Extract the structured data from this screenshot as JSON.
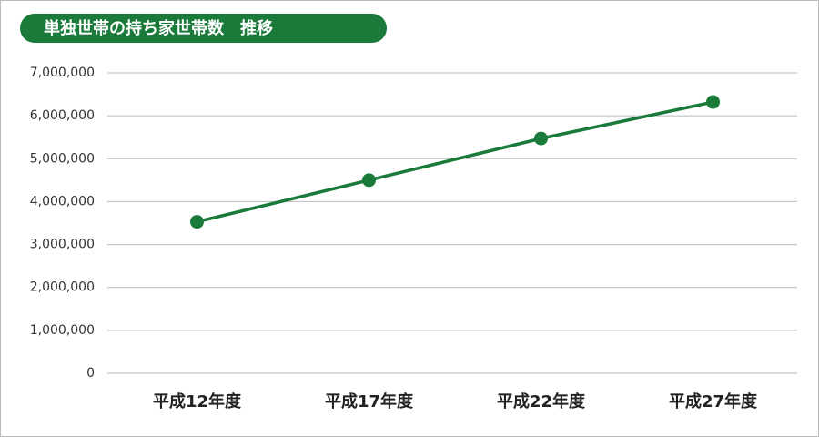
{
  "chart_data": {
    "type": "line",
    "title": "単独世帯の持ち家世帯数　推移",
    "categories": [
      "平成12年度",
      "平成17年度",
      "平成22年度",
      "平成27年度"
    ],
    "values": [
      3530000,
      4500000,
      5470000,
      6320000
    ],
    "color": "#1a7a3a",
    "ylim": [
      0,
      7000000
    ],
    "yticks": [
      0,
      {
        "value": 1000000,
        "label": "1,000,000"
      },
      {
        "value": 2000000,
        "label": "2,000,000"
      },
      {
        "value": 3000000,
        "label": "3,000,000"
      },
      {
        "value": 4000000,
        "label": "4,000,000"
      },
      {
        "value": 5000000,
        "label": "5,000,000"
      },
      {
        "value": 6000000,
        "label": "6,000,000"
      },
      {
        "value": 7000000,
        "label": "7,000,000"
      }
    ],
    "grid": true
  }
}
